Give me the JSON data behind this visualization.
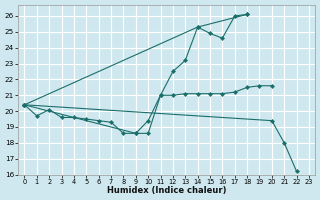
{
  "background_color": "#cfe8ef",
  "grid_color": "#ffffff",
  "line_color": "#1a6e6a",
  "xlim": [
    -0.5,
    23.5
  ],
  "ylim": [
    16,
    26.7
  ],
  "xlabel": "Humidex (Indice chaleur)",
  "yticks": [
    16,
    17,
    18,
    19,
    20,
    21,
    22,
    23,
    24,
    25,
    26
  ],
  "xticks": [
    0,
    1,
    2,
    3,
    4,
    5,
    6,
    7,
    8,
    9,
    10,
    11,
    12,
    13,
    14,
    15,
    16,
    17,
    18,
    19,
    20,
    21,
    22,
    23
  ],
  "lines": [
    {
      "x": [
        0,
        1,
        2,
        3,
        4,
        5,
        6,
        7,
        8,
        9,
        10,
        11,
        12,
        13,
        14,
        15,
        16,
        17,
        18,
        19,
        20
      ],
      "y": [
        20.4,
        19.7,
        20.1,
        19.6,
        19.6,
        19.5,
        19.4,
        19.3,
        18.6,
        18.6,
        19.4,
        21.0,
        21.0,
        21.1,
        21.1,
        21.1,
        21.1,
        21.2,
        21.5,
        21.6,
        21.6
      ]
    },
    {
      "x": [
        0,
        14,
        15,
        16,
        17,
        18
      ],
      "y": [
        20.4,
        25.3,
        24.9,
        24.6,
        26.0,
        26.1
      ]
    },
    {
      "x": [
        0,
        9,
        10,
        11,
        12,
        13,
        14,
        18
      ],
      "y": [
        20.4,
        18.6,
        18.6,
        21.0,
        22.5,
        23.2,
        25.3,
        26.1
      ]
    },
    {
      "x": [
        0,
        20,
        21,
        22
      ],
      "y": [
        20.4,
        19.4,
        18.0,
        16.2
      ]
    }
  ]
}
